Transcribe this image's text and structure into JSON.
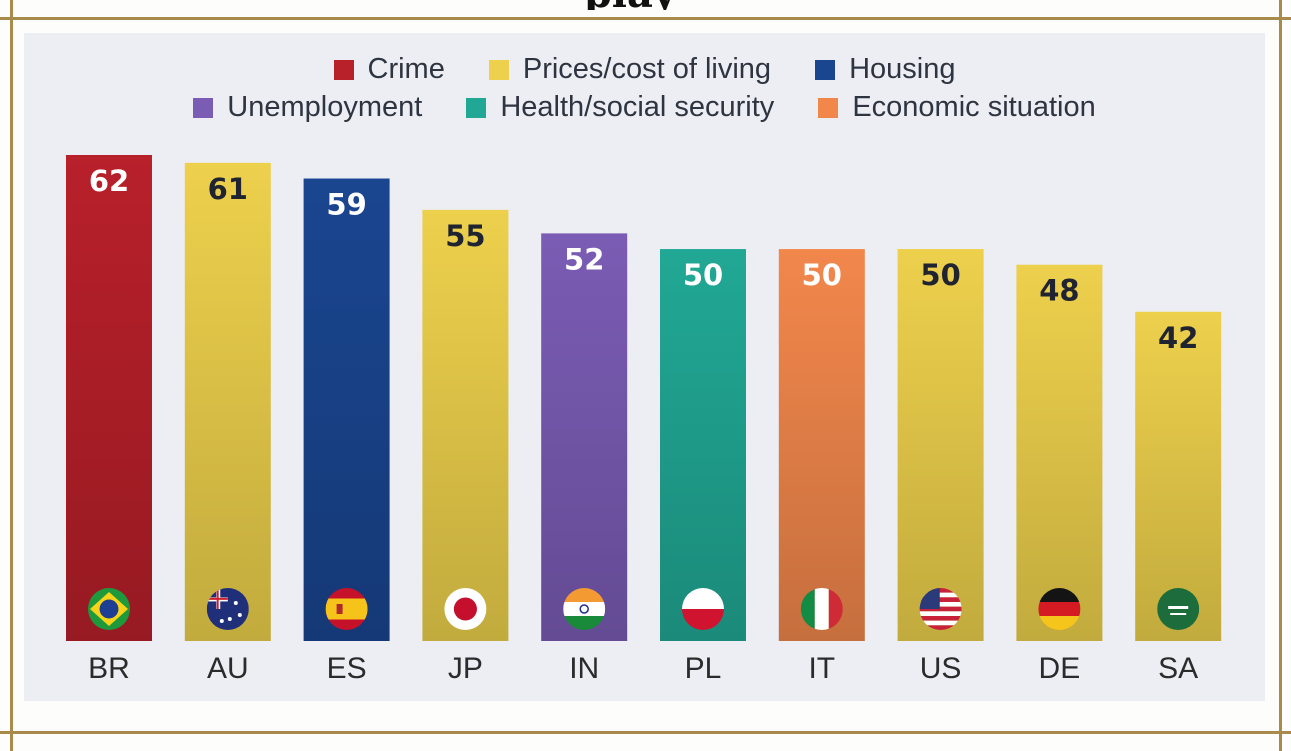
{
  "title_fragment": "play",
  "chart_data": {
    "type": "bar",
    "categories": [
      "BR",
      "AU",
      "ES",
      "JP",
      "IN",
      "PL",
      "IT",
      "US",
      "DE",
      "SA"
    ],
    "values": [
      62,
      61,
      59,
      55,
      52,
      50,
      50,
      50,
      48,
      42
    ],
    "topic": [
      "Crime",
      "Prices/cost of living",
      "Housing",
      "Prices/cost of living",
      "Unemployment",
      "Health/social security",
      "Economic situation",
      "Prices/cost of living",
      "Prices/cost of living",
      "Prices/cost of living"
    ],
    "flags": [
      "brazil-flag-icon",
      "australia-flag-icon",
      "spain-flag-icon",
      "japan-flag-icon",
      "india-flag-icon",
      "poland-flag-icon",
      "italy-flag-icon",
      "usa-flag-icon",
      "germany-flag-icon",
      "saudi-arabia-flag-icon"
    ],
    "legend": [
      {
        "label": "Crime",
        "color": "#b8202a"
      },
      {
        "label": "Prices/cost of living",
        "color": "#edd04c"
      },
      {
        "label": "Housing",
        "color": "#1a4690"
      },
      {
        "label": "Unemployment",
        "color": "#7a5cb4"
      },
      {
        "label": "Health/social security",
        "color": "#21a895"
      },
      {
        "label": "Economic situation",
        "color": "#f2874c"
      }
    ],
    "legend_placement": "top",
    "ylim": [
      0,
      70
    ],
    "grid": false
  }
}
